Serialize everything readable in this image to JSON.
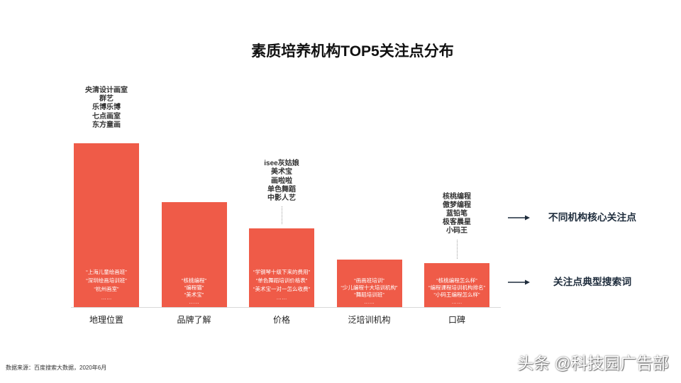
{
  "chart_data": {
    "type": "bar",
    "title": "素质培养机构TOP5关注点分布",
    "xlabel": "",
    "ylabel": "",
    "categories": [
      "地理位置",
      "品牌了解",
      "价格",
      "泛培训机构",
      "口碑"
    ],
    "values": [
      1.0,
      0.64,
      0.48,
      0.29,
      0.27
    ],
    "grid": false,
    "bar_color": "#EF5B48",
    "top_labels": [
      [
        "央清设计画室",
        "群艺",
        "乐博乐博",
        "七点画室",
        "东方童画"
      ],
      [],
      [
        "isee灰姑娘",
        "美术宝",
        "画啦啦",
        "单色舞蹈",
        "中影人艺"
      ],
      [],
      [
        "核桃编程",
        "傲梦编程",
        "蓝铅笔",
        "极客晨星",
        "小码王"
      ]
    ],
    "bar_labels": [
      [
        "“上海儿童绘画班”",
        "“深圳绘画培训班”",
        "“杭州画室”",
        "……"
      ],
      [
        "“核桃编程”",
        "“编程猫”",
        "“美术宝”",
        "……"
      ],
      [
        "“学钢琴十级下来的费用”",
        "“单色舞蹈培训价格表”",
        "“美术宝一对一怎么收费”",
        "……"
      ],
      [
        "“画画班培训”",
        "“少儿编程十大培训机构”",
        "“舞蹈培训班”",
        "……"
      ],
      [
        "“核桃编程怎么样”",
        "“编程课程培训机构排名”",
        "“小码王编程怎么样”",
        "……"
      ]
    ],
    "legend": {
      "placement": "right",
      "items": [
        "不同机构核心关注点",
        "关注点典型搜索词"
      ],
      "color": "#1F2D3D"
    }
  },
  "icons": {
    "legend_marker": "arrow-right-icon"
  },
  "source": "数据来源：百度搜索大数据，2020年6月",
  "watermark": "头条 @科技园广告部"
}
